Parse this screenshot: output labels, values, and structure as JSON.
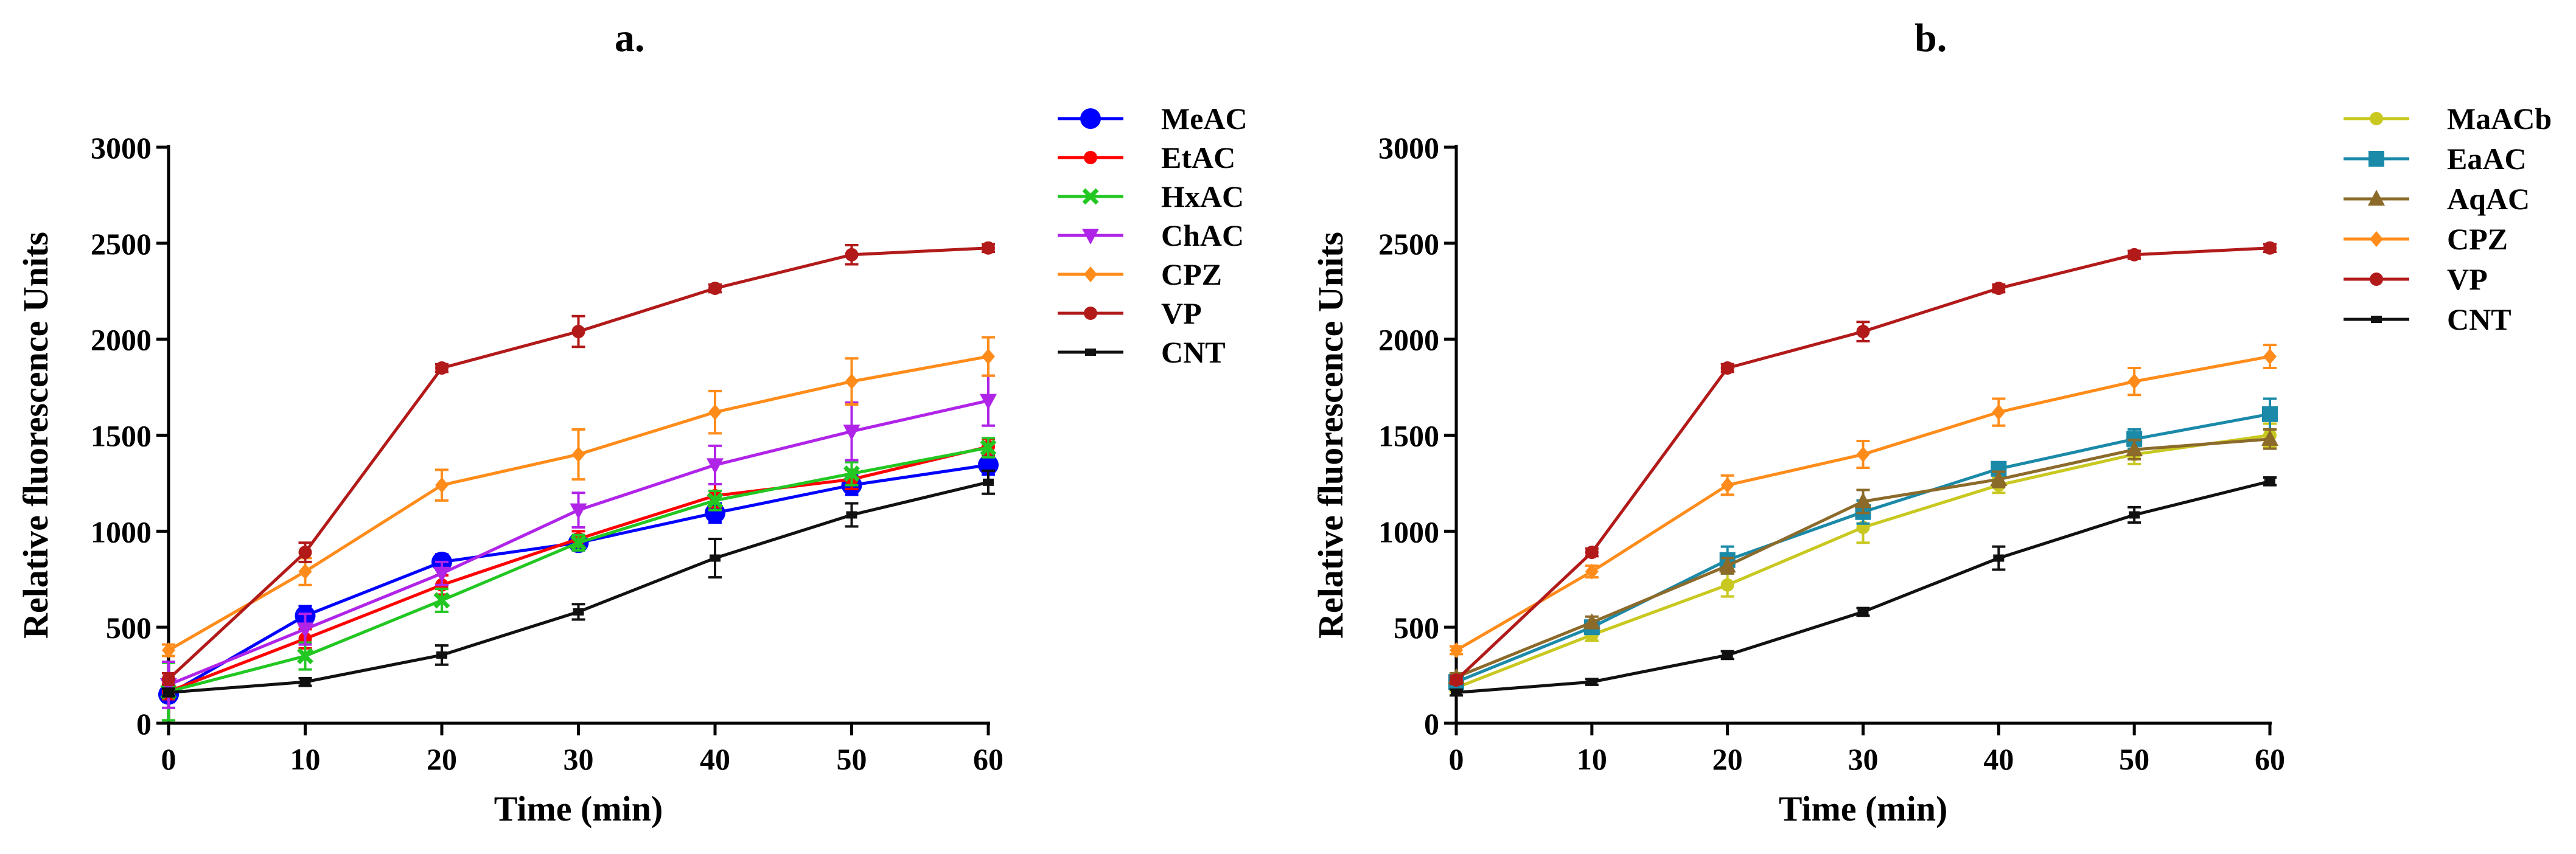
{
  "chart_data": [
    {
      "panel_label": "a.",
      "type": "line",
      "xlabel": "Time (min)",
      "ylabel": "Relative fluorescence Units",
      "x": [
        0,
        10,
        20,
        30,
        40,
        50,
        60
      ],
      "xticks": [
        "0",
        "10",
        "20",
        "30",
        "40",
        "50",
        "60"
      ],
      "yticks": [
        "0",
        "500",
        "1000",
        "1500",
        "2000",
        "2500",
        "3000"
      ],
      "xlim": [
        0,
        60
      ],
      "ylim": [
        0,
        3000
      ],
      "legend_position": "right",
      "series": [
        {
          "name": "MeAC",
          "color": "#0000ff",
          "marker": "circle-large",
          "values": [
            150,
            560,
            840,
            940,
            1095,
            1240,
            1345
          ],
          "errors": [
            40,
            50,
            40,
            40,
            50,
            50,
            50
          ]
        },
        {
          "name": "EtAC",
          "color": "#ff0000",
          "marker": "circle",
          "values": [
            165,
            440,
            720,
            960,
            1185,
            1270,
            1440
          ],
          "errors": [
            40,
            50,
            50,
            40,
            60,
            50,
            40
          ]
        },
        {
          "name": "HxAC",
          "color": "#22c722",
          "marker": "x",
          "values": [
            165,
            350,
            640,
            940,
            1160,
            1300,
            1435
          ],
          "errors": [
            150,
            70,
            60,
            40,
            50,
            60,
            50
          ]
        },
        {
          "name": "ChAC",
          "color": "#b024e8",
          "marker": "triangle-down",
          "values": [
            200,
            490,
            780,
            1110,
            1345,
            1520,
            1680
          ],
          "errors": [
            120,
            80,
            60,
            90,
            100,
            150,
            130
          ]
        },
        {
          "name": "CPZ",
          "color": "#ff8c1a",
          "marker": "diamond",
          "values": [
            380,
            790,
            1240,
            1400,
            1620,
            1780,
            1910
          ],
          "errors": [
            30,
            70,
            80,
            130,
            110,
            120,
            100
          ]
        },
        {
          "name": "VP",
          "color": "#b21a1a",
          "marker": "circle",
          "values": [
            230,
            890,
            1850,
            2040,
            2265,
            2440,
            2475
          ],
          "errors": [
            30,
            50,
            20,
            80,
            20,
            50,
            20
          ]
        },
        {
          "name": "CNT",
          "color": "#111111",
          "marker": "square-small",
          "values": [
            160,
            215,
            355,
            580,
            860,
            1085,
            1255
          ],
          "errors": [
            20,
            20,
            50,
            40,
            100,
            60,
            60
          ]
        }
      ]
    },
    {
      "panel_label": "b.",
      "type": "line",
      "xlabel": "Time (min)",
      "ylabel": "Relative fluorescence Units",
      "x": [
        0,
        10,
        20,
        30,
        40,
        50,
        60
      ],
      "xticks": [
        "0",
        "10",
        "20",
        "30",
        "40",
        "50",
        "60"
      ],
      "yticks": [
        "0",
        "500",
        "1000",
        "1500",
        "2000",
        "2500",
        "3000"
      ],
      "xlim": [
        0,
        60
      ],
      "ylim": [
        0,
        3000
      ],
      "legend_position": "right",
      "series": [
        {
          "name": "MaACb",
          "color": "#c8c820",
          "marker": "circle",
          "values": [
            185,
            460,
            720,
            1020,
            1240,
            1400,
            1500
          ],
          "errors": [
            20,
            30,
            60,
            80,
            40,
            50,
            60
          ]
        },
        {
          "name": "EaAC",
          "color": "#1a8aa8",
          "marker": "square",
          "values": [
            215,
            500,
            850,
            1100,
            1325,
            1480,
            1610
          ],
          "errors": [
            20,
            30,
            70,
            60,
            30,
            50,
            80
          ]
        },
        {
          "name": "AqAC",
          "color": "#8b6a2a",
          "marker": "triangle",
          "values": [
            240,
            525,
            820,
            1155,
            1270,
            1425,
            1480
          ],
          "errors": [
            20,
            30,
            40,
            60,
            40,
            50,
            50
          ]
        },
        {
          "name": "CPZ",
          "color": "#ff8c1a",
          "marker": "diamond",
          "values": [
            380,
            790,
            1240,
            1400,
            1620,
            1780,
            1910
          ],
          "errors": [
            20,
            30,
            50,
            70,
            70,
            70,
            60
          ]
        },
        {
          "name": "VP",
          "color": "#b21a1a",
          "marker": "circle",
          "values": [
            225,
            890,
            1850,
            2040,
            2265,
            2440,
            2475
          ],
          "errors": [
            20,
            20,
            20,
            50,
            20,
            20,
            20
          ]
        },
        {
          "name": "CNT",
          "color": "#111111",
          "marker": "square-small",
          "values": [
            160,
            215,
            355,
            580,
            860,
            1085,
            1260
          ],
          "errors": [
            15,
            15,
            20,
            20,
            60,
            40,
            20
          ]
        }
      ]
    }
  ]
}
